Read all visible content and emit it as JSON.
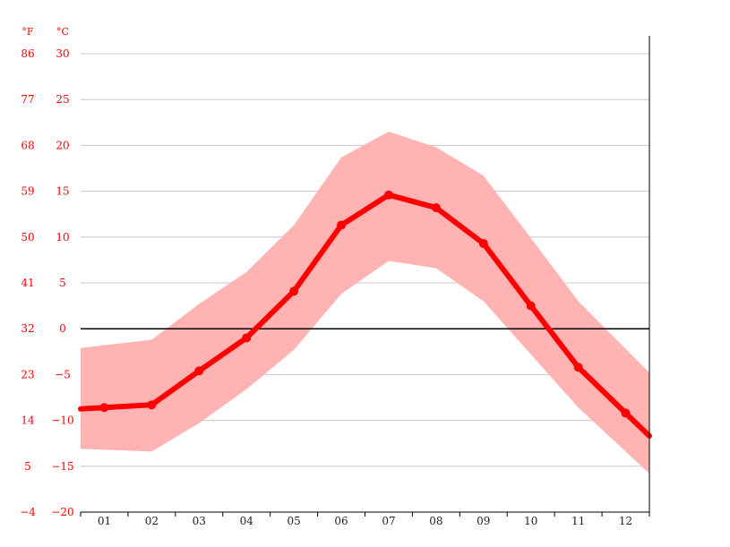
{
  "chart_data": {
    "type": "line",
    "unit_labels": {
      "fahrenheit": "°F",
      "celsius": "°C"
    },
    "categories": [
      "01",
      "02",
      "03",
      "04",
      "05",
      "06",
      "07",
      "08",
      "09",
      "10",
      "11",
      "12"
    ],
    "series": [
      {
        "values": [
          -8.6,
          -8.3,
          -4.6,
          -1.0,
          4.1,
          11.3,
          14.6,
          13.2,
          9.3,
          2.5,
          -4.2,
          -9.2
        ]
      }
    ],
    "range_band": {
      "upper": [
        -1.8,
        -1.2,
        2.7,
        6.2,
        11.3,
        18.7,
        21.5,
        19.8,
        16.7,
        9.9,
        3.0,
        -2.2
      ],
      "lower": [
        -13.2,
        -13.4,
        -10.3,
        -6.6,
        -2.3,
        3.8,
        7.4,
        6.6,
        3.0,
        -2.8,
        -8.6,
        -13.4
      ]
    },
    "y_celsius_ticks": [
      "30",
      "25",
      "20",
      "15",
      "10",
      "5",
      "0",
      "−5",
      "−10",
      "−15",
      "−20"
    ],
    "y_fahrenheit_ticks": [
      "86",
      "77",
      "68",
      "59",
      "50",
      "41",
      "32",
      "23",
      "14",
      "5",
      "−4"
    ],
    "ylim": [
      -20,
      30
    ],
    "grid": true,
    "colors": {
      "line": "#ff0000",
      "band": "#ffb3b3",
      "grid": "#c8c8c8",
      "zero_line": "#000000",
      "axis_text": "#ff0000"
    }
  }
}
